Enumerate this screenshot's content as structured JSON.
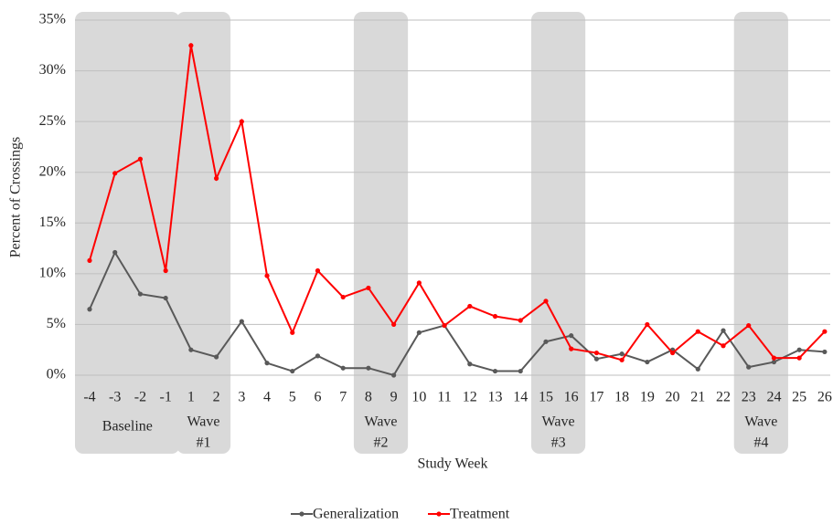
{
  "chart_data": {
    "type": "line",
    "x_label": "Study Week",
    "y_label": "Percent of Crossings",
    "categories": [
      "-4",
      "-3",
      "-2",
      "-1",
      "1",
      "2",
      "3",
      "4",
      "5",
      "6",
      "7",
      "8",
      "9",
      "10",
      "11",
      "12",
      "13",
      "14",
      "15",
      "16",
      "17",
      "18",
      "19",
      "20",
      "21",
      "22",
      "23",
      "24",
      "25",
      "26"
    ],
    "series": [
      {
        "name": "Generalization",
        "color": "#595959",
        "values": [
          6.5,
          12.1,
          8.0,
          7.6,
          2.5,
          1.8,
          5.3,
          1.2,
          0.4,
          1.9,
          0.7,
          0.7,
          0.0,
          4.2,
          4.9,
          1.1,
          0.4,
          0.4,
          3.3,
          3.9,
          1.6,
          2.1,
          1.3,
          2.5,
          0.6,
          4.4,
          0.8,
          1.3,
          2.5,
          2.3
        ]
      },
      {
        "name": "Treatment",
        "color": "#ff0000",
        "values": [
          11.3,
          19.9,
          21.3,
          10.3,
          32.5,
          19.4,
          25.0,
          9.8,
          4.2,
          10.3,
          7.7,
          8.6,
          5.0,
          9.1,
          4.9,
          6.8,
          5.8,
          5.4,
          7.3,
          2.6,
          2.2,
          1.5,
          5.0,
          2.2,
          4.3,
          2.9,
          4.9,
          1.7,
          1.7,
          4.3
        ]
      }
    ],
    "ylim": [
      0,
      35
    ],
    "yticks": [
      {
        "value": 0,
        "label": "0%"
      },
      {
        "value": 5,
        "label": "5%"
      },
      {
        "value": 10,
        "label": "10%"
      },
      {
        "value": 15,
        "label": "15%"
      },
      {
        "value": 20,
        "label": "20%"
      },
      {
        "value": 25,
        "label": "25%"
      },
      {
        "value": 30,
        "label": "30%"
      },
      {
        "value": 35,
        "label": "35%"
      }
    ],
    "grid": true,
    "legend": "bottom",
    "shaded_periods": [
      {
        "label": [
          "Baseline"
        ],
        "start": "-4",
        "end": "-1"
      },
      {
        "label": [
          "Wave",
          "#1"
        ],
        "start": "1",
        "end": "2"
      },
      {
        "label": [
          "Wave",
          "#2"
        ],
        "start": "8",
        "end": "9"
      },
      {
        "label": [
          "Wave",
          "#3"
        ],
        "start": "15",
        "end": "16"
      },
      {
        "label": [
          "Wave",
          "#4"
        ],
        "start": "23",
        "end": "24"
      }
    ]
  }
}
